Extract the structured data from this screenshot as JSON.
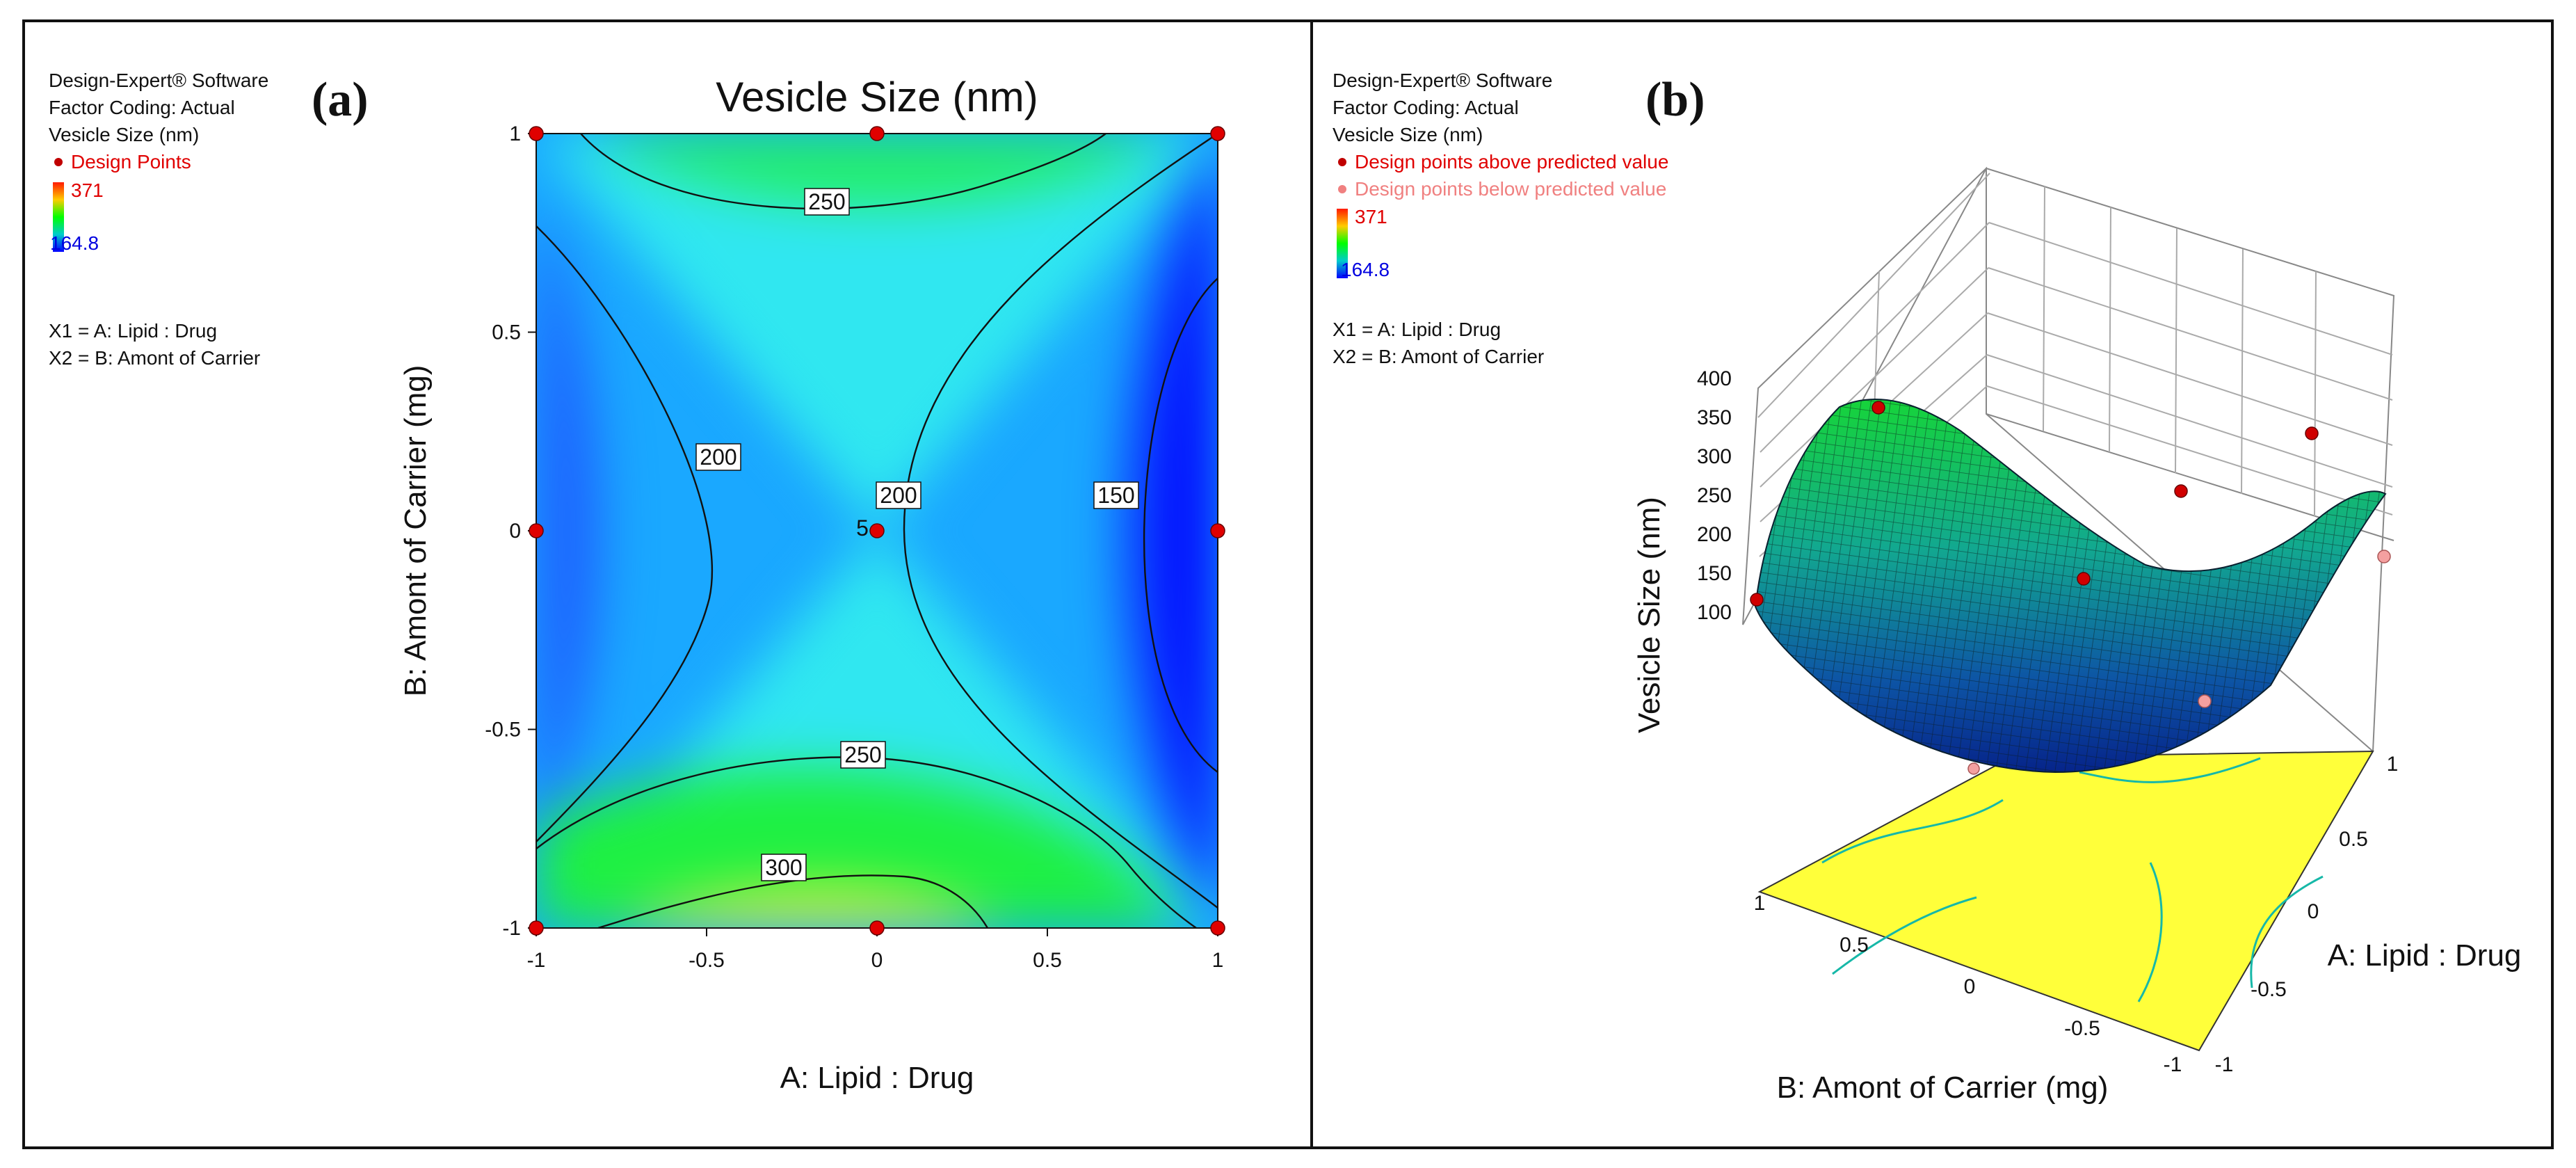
{
  "chart_data": [
    {
      "panel": "(a)",
      "type": "contour",
      "title": "Vesicle Size (nm)",
      "xlabel": "A: Lipid : Drug",
      "ylabel": "B: Amont of Carrier (mg)",
      "xlim": [
        -1,
        1
      ],
      "ylim": [
        -1,
        1
      ],
      "xticks": [
        "-1",
        "-0.5",
        "0",
        "0.5",
        "1"
      ],
      "yticks": [
        "-1",
        "-0.5",
        "0",
        "0.5",
        "1"
      ],
      "colorscale": {
        "min": "164.8",
        "max": "371"
      },
      "contour_labels": [
        "250",
        "200",
        "200",
        "150",
        "250",
        "300"
      ],
      "center_point_count": "5",
      "design_points": [
        [
          -1,
          -1
        ],
        [
          0,
          -1
        ],
        [
          1,
          -1
        ],
        [
          -1,
          0
        ],
        [
          0,
          0
        ],
        [
          1,
          0
        ],
        [
          -1,
          1
        ],
        [
          0,
          1
        ],
        [
          1,
          1
        ]
      ],
      "legend_lines": [
        "Design-Expert® Software",
        "Factor Coding: Actual",
        "Vesicle Size (nm)",
        "Design Points",
        "X1 = A: Lipid : Drug",
        "X2 = B: Amont of Carrier"
      ]
    },
    {
      "panel": "(b)",
      "type": "surface3d",
      "zlabel": "Vesicle Size (nm)",
      "xlabel": "B: Amont of Carrier (mg)",
      "ylabel": "A: Lipid : Drug",
      "zticks": [
        "100",
        "150",
        "200",
        "250",
        "300",
        "350",
        "400"
      ],
      "b_ticks": [
        "1",
        "0.5",
        "0",
        "-0.5",
        "-1"
      ],
      "a_ticks": [
        "1",
        "0.5",
        "0",
        "-0.5",
        "-1"
      ],
      "colorscale": {
        "min": "164.8",
        "max": "371"
      },
      "legend_lines": [
        "Design-Expert® Software",
        "Factor Coding: Actual",
        "Vesicle Size (nm)",
        "Design points above predicted value",
        "Design points below predicted value",
        "X1 = A: Lipid : Drug",
        "X2 = B: Amont of Carrier"
      ]
    }
  ],
  "colors": {
    "design_point": "#e00000",
    "below_point": "#f08080",
    "floor": "#ffff3a"
  }
}
